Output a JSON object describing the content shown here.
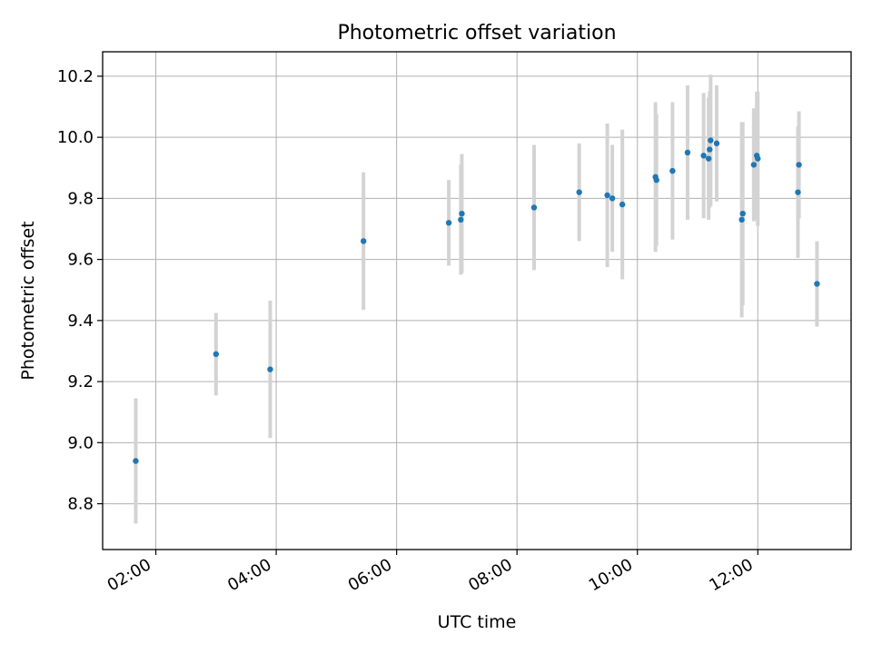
{
  "chart_data": {
    "type": "scatter",
    "title": "Photometric offset variation",
    "xlabel": "UTC time",
    "ylabel": "Photometric offset",
    "x_ticks": [
      "02:00",
      "04:00",
      "06:00",
      "08:00",
      "10:00",
      "12:00"
    ],
    "y_ticks": [
      "8.8",
      "9.0",
      "9.2",
      "9.4",
      "9.6",
      "9.8",
      "10.0",
      "10.2"
    ],
    "xlim": [
      "01:07",
      "13:33"
    ],
    "ylim": [
      8.65,
      10.28
    ],
    "grid": true,
    "colors": {
      "points": "#1f77b4",
      "errorbars": "#d3d3d3",
      "grid": "#b0b0b0"
    },
    "points": [
      {
        "x": "01:40",
        "y": 8.94,
        "err": 0.205
      },
      {
        "x": "03:00",
        "y": 9.29,
        "err": 0.135
      },
      {
        "x": "03:54",
        "y": 9.24,
        "err": 0.225
      },
      {
        "x": "05:27",
        "y": 9.66,
        "err": 0.225
      },
      {
        "x": "06:52",
        "y": 9.72,
        "err": 0.14
      },
      {
        "x": "07:04",
        "y": 9.73,
        "err": 0.18
      },
      {
        "x": "07:05",
        "y": 9.75,
        "err": 0.195
      },
      {
        "x": "08:17",
        "y": 9.77,
        "err": 0.205
      },
      {
        "x": "09:02",
        "y": 9.82,
        "err": 0.16
      },
      {
        "x": "09:30",
        "y": 9.81,
        "err": 0.235
      },
      {
        "x": "09:35",
        "y": 9.8,
        "err": 0.175
      },
      {
        "x": "09:45",
        "y": 9.78,
        "err": 0.245
      },
      {
        "x": "10:18",
        "y": 9.87,
        "err": 0.245
      },
      {
        "x": "10:19",
        "y": 9.86,
        "err": 0.215
      },
      {
        "x": "10:35",
        "y": 9.89,
        "err": 0.225
      },
      {
        "x": "10:50",
        "y": 9.95,
        "err": 0.22
      },
      {
        "x": "11:06",
        "y": 9.94,
        "err": 0.205
      },
      {
        "x": "11:11",
        "y": 9.93,
        "err": 0.2
      },
      {
        "x": "11:12",
        "y": 9.96,
        "err": 0.19
      },
      {
        "x": "11:13",
        "y": 9.99,
        "err": 0.215
      },
      {
        "x": "11:19",
        "y": 9.98,
        "err": 0.19
      },
      {
        "x": "11:44",
        "y": 9.73,
        "err": 0.32
      },
      {
        "x": "11:45",
        "y": 9.75,
        "err": 0.3
      },
      {
        "x": "11:56",
        "y": 9.91,
        "err": 0.185
      },
      {
        "x": "11:59",
        "y": 9.94,
        "err": 0.21
      },
      {
        "x": "12:00",
        "y": 9.93,
        "err": 0.22
      },
      {
        "x": "12:40",
        "y": 9.82,
        "err": 0.215
      },
      {
        "x": "12:41",
        "y": 9.91,
        "err": 0.175
      },
      {
        "x": "12:59",
        "y": 9.52,
        "err": 0.14
      }
    ]
  }
}
